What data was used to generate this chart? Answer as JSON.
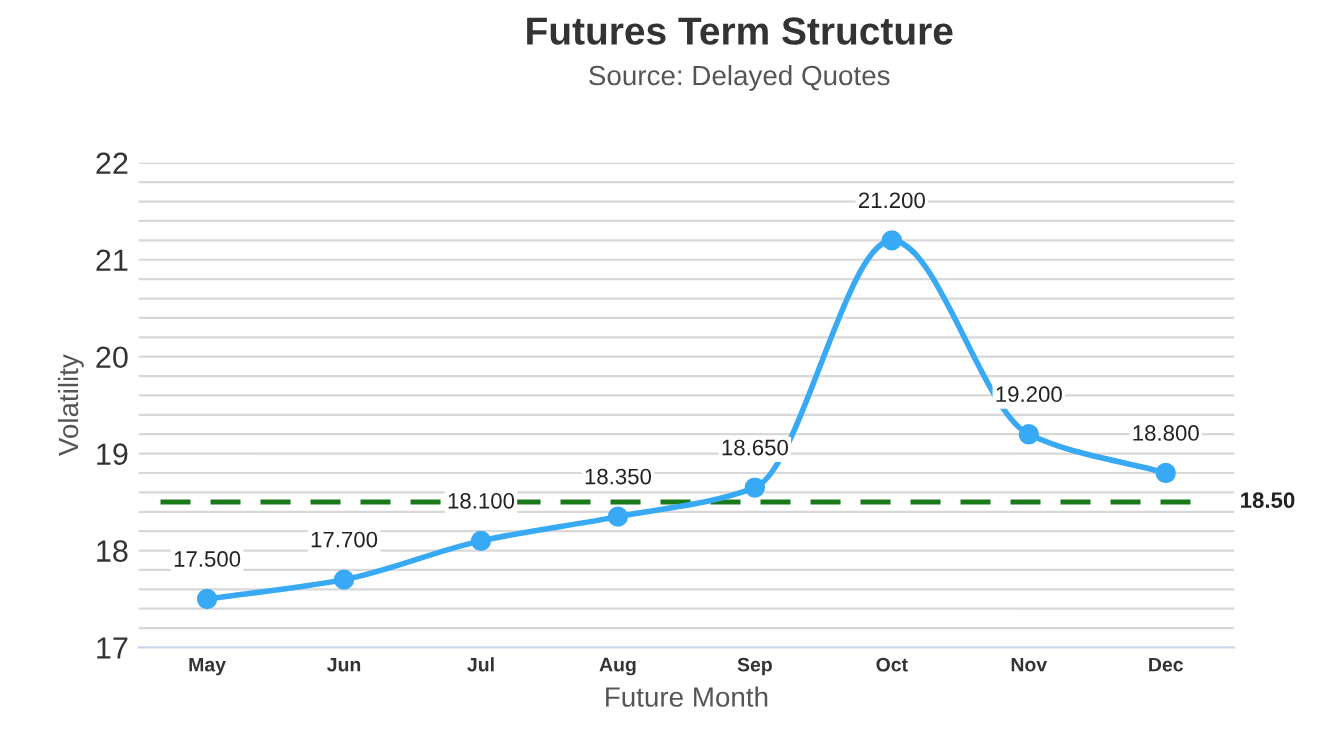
{
  "chart_data": {
    "type": "line",
    "title": "Futures Term Structure",
    "subtitle": "Source: Delayed Quotes",
    "xlabel": "Future Month",
    "ylabel": "Volatility",
    "categories": [
      "May",
      "Jun",
      "Jul",
      "Aug",
      "Sep",
      "Oct",
      "Nov",
      "Dec"
    ],
    "series": [
      {
        "color": "#38a9f4",
        "values": [
          17.5,
          17.7,
          18.1,
          18.35,
          18.65,
          21.2,
          19.2,
          18.8
        ]
      }
    ],
    "value_labels": [
      "17.500",
      "17.700",
      "18.100",
      "18.350",
      "18.650",
      "21.200",
      "19.200",
      "18.800"
    ],
    "ylim": [
      17,
      22
    ],
    "yticks": [
      17,
      {
        "value": 17.2,
        "label": null
      },
      {
        "value": 17.4,
        "label": null
      },
      {
        "value": 17.6,
        "label": null
      },
      {
        "value": 17.8,
        "label": null
      },
      18,
      {
        "value": 18.2,
        "label": null
      },
      {
        "value": 18.4,
        "label": null
      },
      {
        "value": 18.6,
        "label": null
      },
      {
        "value": 18.8,
        "label": null
      },
      19,
      {
        "value": 19.2,
        "label": null
      },
      {
        "value": 19.4,
        "label": null
      },
      {
        "value": 19.6,
        "label": null
      },
      {
        "value": 19.8,
        "label": null
      },
      20,
      {
        "value": 20.2,
        "label": null
      },
      {
        "value": 20.4,
        "label": null
      },
      {
        "value": 20.6,
        "label": null
      },
      {
        "value": 20.8,
        "label": null
      },
      21,
      {
        "value": 21.2,
        "label": null
      },
      {
        "value": 21.4,
        "label": null
      },
      {
        "value": 21.6,
        "label": null
      },
      {
        "value": 21.8,
        "label": null
      },
      22
    ],
    "ref_lines": [
      {
        "axis": "y",
        "value": 18.5,
        "label": "18.50",
        "color": "#1a7a1a",
        "line_style": "dashed"
      }
    ],
    "grid": "y",
    "marker": "circle",
    "line_style": "solid",
    "legend": false
  }
}
